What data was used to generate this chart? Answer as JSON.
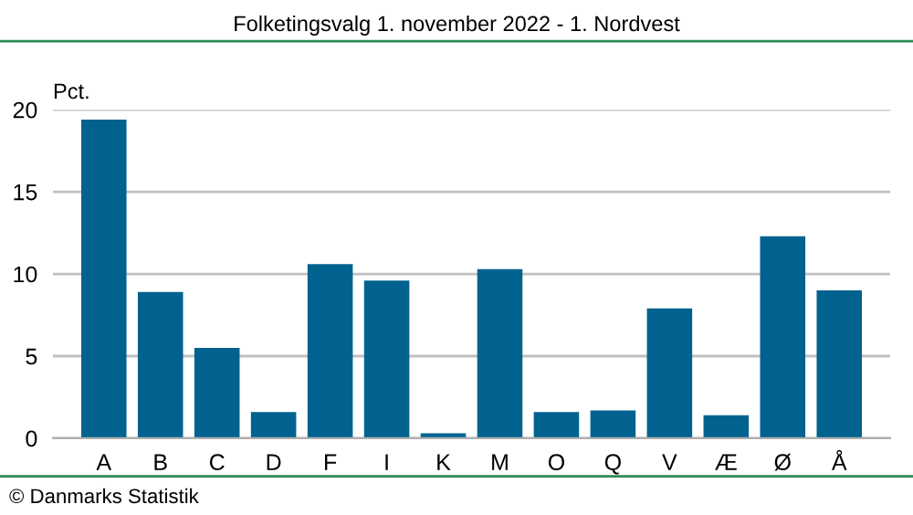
{
  "chart_data": {
    "type": "bar",
    "title": "Folketingsvalg 1. november 2022 - 1. Nordvest",
    "ylabel": "Pct.",
    "categories": [
      "A",
      "B",
      "C",
      "D",
      "F",
      "I",
      "K",
      "M",
      "O",
      "Q",
      "V",
      "Æ",
      "Ø",
      "Å"
    ],
    "values": [
      19.4,
      8.9,
      5.5,
      1.6,
      10.6,
      9.6,
      0.3,
      10.3,
      1.6,
      1.7,
      7.9,
      1.4,
      12.3,
      9.0
    ],
    "color": "#02628f",
    "ylim": [
      0,
      20
    ],
    "yticks": [
      0,
      5,
      10,
      15,
      20
    ],
    "grid": "y",
    "annotations": [
      "© Danmarks Statistik"
    ]
  }
}
